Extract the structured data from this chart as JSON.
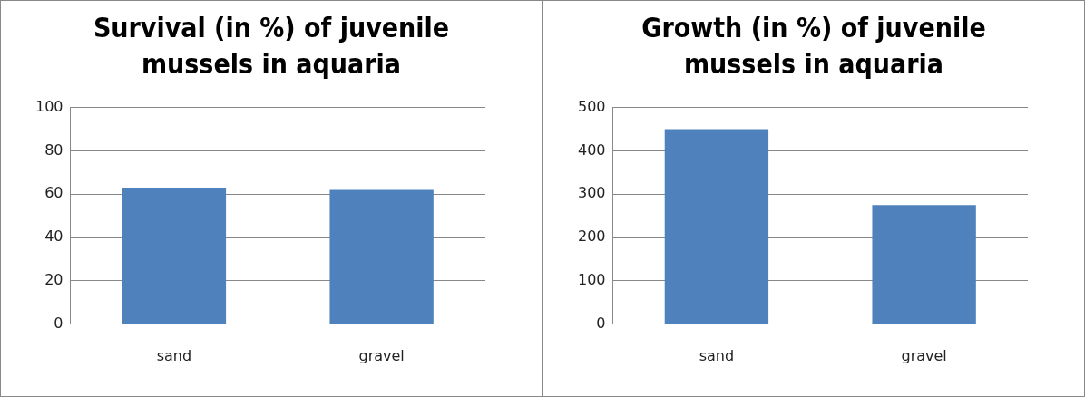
{
  "chart_data": [
    {
      "type": "bar",
      "title": "Survival (in %) of juvenile mussels in aquaria",
      "categories": [
        "sand",
        "gravel"
      ],
      "values": [
        63,
        62
      ],
      "color": "#4f81bd",
      "ylim": [
        0,
        100
      ],
      "yticks": [
        0,
        20,
        40,
        60,
        80,
        100
      ],
      "grid": "y"
    },
    {
      "type": "bar",
      "title": "Growth (in %) of juvenile mussels in aquaria",
      "categories": [
        "sand",
        "gravel"
      ],
      "values": [
        450,
        275
      ],
      "color": "#4f81bd",
      "ylim": [
        0,
        500
      ],
      "yticks": [
        0,
        100,
        200,
        300,
        400,
        500
      ],
      "grid": "y"
    }
  ]
}
